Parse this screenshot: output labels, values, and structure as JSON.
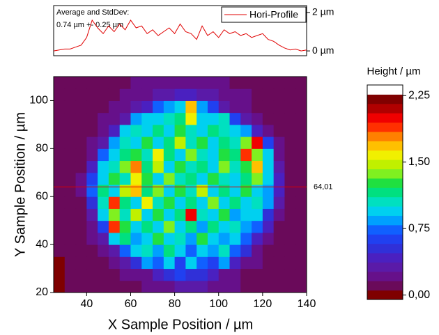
{
  "chart_data": [
    {
      "type": "line",
      "annotation": [
        "Average and StdDev:",
        "0.74 µm +- 0.25 µm"
      ],
      "x": [
        25,
        27.5,
        30,
        32.5,
        35,
        37.5,
        40,
        42.5,
        45,
        47.5,
        50,
        52.5,
        55,
        57.5,
        60,
        62.5,
        65,
        67.5,
        70,
        72.5,
        75,
        77.5,
        80,
        82.5,
        85,
        87.5,
        90,
        92.5,
        95,
        97.5,
        100,
        102.5,
        105,
        107.5,
        110,
        112.5,
        115,
        117.5,
        120,
        122.5,
        125,
        127.5,
        130,
        132.5,
        135,
        137.5,
        140
      ],
      "series": [
        {
          "name": "Hori-Profile",
          "color": "#e00000",
          "values": [
            0,
            0.05,
            0.1,
            0.1,
            0.2,
            0.3,
            0.7,
            1.6,
            1.2,
            0.9,
            1.3,
            1.0,
            1.4,
            1.1,
            1.6,
            1.2,
            1.3,
            0.9,
            1.1,
            0.8,
            1.0,
            1.2,
            0.9,
            1.4,
            1.0,
            0.9,
            0.6,
            1.3,
            0.8,
            1.0,
            0.7,
            1.1,
            0.9,
            1.0,
            0.8,
            0.9,
            0.7,
            0.8,
            0.9,
            0.6,
            0.5,
            0.3,
            0.15,
            0.05,
            0.1,
            0.0,
            0.05
          ]
        }
      ],
      "xlim": [
        25,
        140
      ],
      "ylim": [
        -0.25,
        2.36
      ],
      "yticks": [
        {
          "value": 0,
          "label": "0 µm"
        },
        {
          "value": 2,
          "label": "2 µm"
        }
      ],
      "legend": "upper right"
    },
    {
      "type": "heatmap",
      "xlabel": "X Sample Position / µm",
      "ylabel": "Y Sample Position / µm",
      "xlim": [
        25,
        140
      ],
      "ylim": [
        20,
        110
      ],
      "xticks": [
        40,
        60,
        80,
        100,
        120,
        140
      ],
      "yticks": [
        20,
        40,
        60,
        80,
        100
      ],
      "cursor": {
        "value": 64.01,
        "label": "64,01",
        "color": "#e00000"
      },
      "colorbar_title": "Height / µm",
      "zlim": [
        -0.05,
        2.37
      ],
      "zticks": [
        {
          "value": 0,
          "label": "0,00"
        },
        {
          "value": 0.75,
          "label": "0,75"
        },
        {
          "value": 1.5,
          "label": "1,50"
        },
        {
          "value": 2.25,
          "label": "2,25"
        }
      ],
      "colormap": [
        "#7f0000",
        "#6a0a5a",
        "#66108a",
        "#5a1aa8",
        "#4a20c0",
        "#3030d8",
        "#2040f0",
        "#1060ff",
        "#00a0ff",
        "#00d0f0",
        "#00e0c0",
        "#00e080",
        "#20e040",
        "#80f020",
        "#c0f000",
        "#f0f000",
        "#ffc000",
        "#ff8000",
        "#ff3000",
        "#f00000",
        "#b00000",
        "#800000",
        "#ffffff"
      ],
      "x": [
        27.5,
        32.5,
        37.5,
        42.5,
        47.5,
        52.5,
        57.5,
        62.5,
        67.5,
        72.5,
        77.5,
        82.5,
        87.5,
        92.5,
        97.5,
        102.5,
        107.5,
        112.5,
        117.5,
        122.5,
        127.5,
        132.5,
        137.5
      ],
      "y": [
        22.5,
        27.5,
        32.5,
        37.5,
        42.5,
        47.5,
        52.5,
        57.5,
        62.5,
        67.5,
        72.5,
        77.5,
        82.5,
        87.5,
        92.5,
        97.5,
        102.5,
        107.5
      ],
      "z": [
        [
          0.05,
          0.08,
          0.12,
          0.15,
          0.14,
          0.15,
          0.16,
          0.15,
          0.17,
          0.2,
          0.22,
          0.3,
          0.28,
          0.35,
          0.25,
          0.2,
          0.17,
          0.15,
          0.14,
          0.13,
          0.12,
          0.13,
          0.12
        ],
        [
          0.04,
          0.08,
          0.12,
          0.14,
          0.15,
          0.16,
          0.18,
          0.2,
          0.25,
          0.45,
          0.5,
          0.6,
          0.55,
          0.5,
          0.4,
          0.25,
          0.2,
          0.16,
          0.15,
          0.13,
          0.12,
          0.12,
          0.11
        ],
        [
          0.05,
          0.1,
          0.12,
          0.14,
          0.16,
          0.2,
          0.3,
          0.55,
          0.8,
          0.7,
          0.9,
          0.65,
          1.0,
          0.75,
          0.6,
          0.85,
          0.45,
          0.25,
          0.18,
          0.15,
          0.13,
          0.12,
          0.12
        ],
        [
          0.06,
          0.1,
          0.13,
          0.15,
          0.2,
          0.35,
          0.7,
          0.9,
          1.1,
          0.8,
          1.2,
          0.9,
          0.75,
          1.0,
          0.85,
          1.1,
          0.7,
          0.5,
          0.22,
          0.15,
          0.13,
          0.12,
          0.12
        ],
        [
          0.08,
          0.1,
          0.13,
          0.18,
          0.35,
          0.9,
          1.2,
          0.85,
          1.0,
          1.3,
          0.9,
          1.1,
          0.8,
          1.25,
          0.95,
          0.8,
          1.0,
          0.7,
          0.45,
          0.2,
          0.14,
          0.13,
          0.12
        ],
        [
          0.08,
          0.11,
          0.14,
          0.2,
          0.6,
          1.9,
          1.3,
          1.0,
          1.2,
          0.9,
          1.4,
          1.0,
          1.15,
          0.85,
          1.2,
          0.9,
          1.1,
          0.8,
          0.75,
          0.4,
          0.16,
          0.13,
          0.12
        ],
        [
          0.09,
          0.11,
          0.15,
          0.3,
          0.9,
          1.4,
          1.1,
          1.5,
          1.0,
          1.3,
          0.9,
          1.2,
          2.0,
          1.1,
          0.95,
          1.3,
          0.85,
          1.0,
          0.9,
          0.55,
          0.2,
          0.14,
          0.12
        ],
        [
          0.1,
          0.12,
          0.16,
          0.5,
          1.1,
          1.9,
          1.2,
          1.0,
          1.6,
          1.1,
          1.3,
          1.0,
          1.2,
          0.9,
          1.4,
          1.0,
          1.2,
          0.9,
          1.1,
          0.8,
          0.35,
          0.15,
          0.13
        ],
        [
          0.1,
          0.12,
          0.18,
          0.7,
          1.2,
          1.0,
          1.5,
          1.7,
          1.2,
          1.4,
          1.0,
          1.3,
          1.1,
          1.5,
          1.0,
          1.2,
          0.9,
          1.3,
          1.0,
          0.85,
          0.45,
          0.16,
          0.13
        ],
        [
          0.12,
          0.13,
          0.17,
          0.6,
          1.0,
          1.3,
          1.1,
          1.6,
          1.3,
          1.0,
          1.4,
          1.1,
          1.2,
          0.95,
          1.3,
          1.1,
          1.0,
          1.2,
          1.4,
          0.9,
          0.4,
          0.15,
          0.13
        ],
        [
          0.1,
          0.12,
          0.15,
          0.4,
          0.9,
          1.1,
          1.4,
          1.8,
          1.2,
          1.5,
          1.0,
          1.3,
          1.1,
          1.2,
          1.0,
          1.4,
          1.1,
          1.3,
          1.7,
          1.0,
          0.3,
          0.14,
          0.12
        ],
        [
          0.09,
          0.12,
          0.14,
          0.25,
          0.7,
          1.0,
          1.2,
          1.3,
          1.1,
          1.6,
          1.2,
          0.9,
          1.4,
          1.1,
          1.0,
          1.3,
          1.2,
          1.9,
          1.4,
          0.9,
          0.25,
          0.14,
          0.12
        ],
        [
          0.1,
          0.12,
          0.14,
          0.18,
          0.35,
          0.8,
          1.1,
          1.0,
          1.3,
          1.0,
          1.2,
          1.5,
          1.1,
          1.3,
          0.9,
          1.2,
          1.1,
          1.4,
          2.0,
          0.6,
          0.2,
          0.13,
          0.12
        ],
        [
          0.1,
          0.11,
          0.13,
          0.16,
          0.2,
          0.45,
          0.9,
          1.1,
          1.0,
          1.2,
          0.9,
          1.3,
          1.1,
          1.0,
          1.2,
          1.1,
          1.0,
          0.8,
          0.4,
          0.2,
          0.15,
          0.13,
          0.12
        ],
        [
          0.1,
          0.11,
          0.13,
          0.15,
          0.17,
          0.2,
          0.35,
          0.8,
          1.0,
          0.9,
          1.1,
          1.2,
          1.6,
          1.0,
          0.9,
          1.1,
          0.6,
          0.3,
          0.18,
          0.15,
          0.13,
          0.12,
          0.12
        ],
        [
          0.1,
          0.11,
          0.13,
          0.14,
          0.15,
          0.17,
          0.2,
          0.3,
          0.45,
          0.7,
          0.8,
          0.9,
          1.7,
          0.8,
          0.6,
          0.35,
          0.25,
          0.18,
          0.15,
          0.14,
          0.13,
          0.12,
          0.11
        ],
        [
          0.1,
          0.11,
          0.12,
          0.14,
          0.15,
          0.16,
          0.18,
          0.2,
          0.25,
          0.3,
          0.35,
          0.4,
          0.45,
          0.35,
          0.3,
          0.25,
          0.2,
          0.17,
          0.15,
          0.14,
          0.13,
          0.12,
          0.11
        ],
        [
          0.09,
          0.1,
          0.12,
          0.13,
          0.14,
          0.15,
          0.16,
          0.17,
          0.18,
          0.2,
          0.22,
          0.25,
          0.22,
          0.2,
          0.18,
          0.17,
          0.16,
          0.15,
          0.14,
          0.13,
          0.12,
          0.12,
          0.11
        ]
      ]
    }
  ]
}
